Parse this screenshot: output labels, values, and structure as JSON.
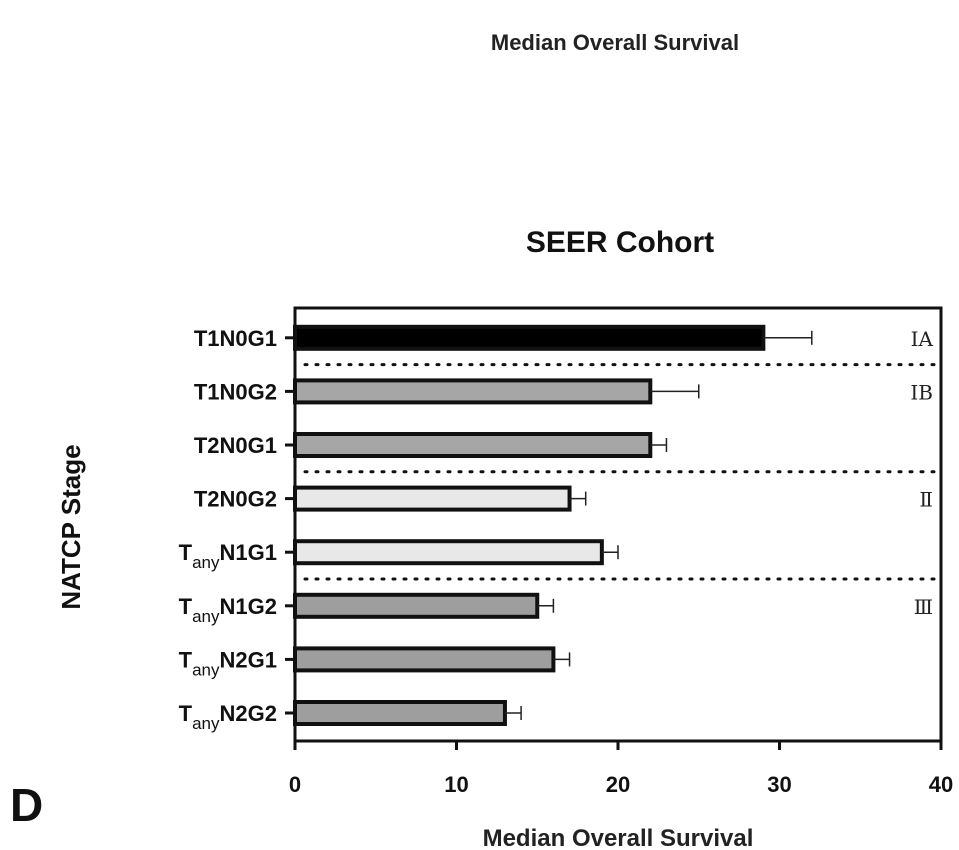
{
  "header": {
    "top_title": "Median Overall Survival"
  },
  "panel": {
    "letter": "D"
  },
  "chart_data": {
    "type": "bar",
    "orientation": "horizontal",
    "title": "SEER Cohort",
    "xlabel": "Median Overall Survival",
    "ylabel": "NATCP Stage",
    "xlim": [
      0,
      40
    ],
    "xticks": [
      0,
      10,
      20,
      30,
      40
    ],
    "categories": [
      {
        "pre": "T1N0G1",
        "sub": "",
        "post": ""
      },
      {
        "pre": "T1N0G2",
        "sub": "",
        "post": ""
      },
      {
        "pre": "T2N0G1",
        "sub": "",
        "post": ""
      },
      {
        "pre": "T2N0G2",
        "sub": "",
        "post": ""
      },
      {
        "pre": "T",
        "sub": "any",
        "post": "N1G1"
      },
      {
        "pre": "T",
        "sub": "any",
        "post": "N1G2"
      },
      {
        "pre": "T",
        "sub": "any",
        "post": "N2G1"
      },
      {
        "pre": "T",
        "sub": "any",
        "post": "N2G2"
      }
    ],
    "values": [
      29,
      22,
      22,
      17,
      19,
      15,
      16,
      13
    ],
    "errors": [
      3,
      3,
      1,
      1,
      1,
      1,
      1,
      1
    ],
    "bar_colors": [
      "#000000",
      "#a6a6a6",
      "#a6a6a6",
      "#e8e8e8",
      "#e8e8e8",
      "#9e9e9e",
      "#9e9e9e",
      "#9e9e9e"
    ],
    "stage_groups": [
      {
        "label": "ⅠA",
        "start": 0,
        "end": 0
      },
      {
        "label": "ⅠB",
        "start": 1,
        "end": 2
      },
      {
        "label": "Ⅱ",
        "start": 3,
        "end": 4
      },
      {
        "label": "Ⅲ",
        "start": 5,
        "end": 7
      }
    ],
    "separators_after": [
      0,
      2,
      4
    ]
  }
}
